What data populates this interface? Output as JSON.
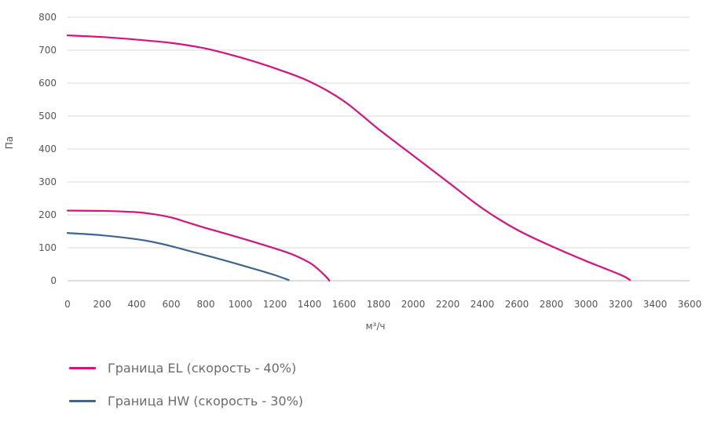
{
  "chart_data": {
    "type": "line",
    "title": "",
    "xlabel": "м³/ч",
    "ylabel": "Па",
    "xlim": [
      0,
      3600
    ],
    "ylim": [
      0,
      800
    ],
    "x_ticks": [
      "0",
      "200",
      "400",
      "600",
      "800",
      "1000",
      "1200",
      "1400",
      "1600",
      "1800",
      "2000",
      "2200",
      "2400",
      "2600",
      "2800",
      "3000",
      "3200",
      "3400",
      "3600"
    ],
    "y_ticks": [
      "0",
      "100",
      "200",
      "300",
      "400",
      "500",
      "600",
      "700",
      "800"
    ],
    "grid": "horizontal",
    "legend_position": "bottom-left",
    "series": [
      {
        "name": "Граница EL (скорость - 40%)",
        "color": "#d6127c",
        "x": [
          0,
          200,
          400,
          600,
          800,
          1000,
          1200,
          1400,
          1600,
          1800,
          2000,
          2200,
          2400,
          2600,
          2800,
          3000,
          3200,
          3255
        ],
        "y": [
          745,
          740,
          732,
          722,
          705,
          678,
          645,
          605,
          545,
          460,
          380,
          300,
          220,
          155,
          105,
          60,
          18,
          2
        ]
      },
      {
        "name": "",
        "color": "#d6127c",
        "x": [
          0,
          200,
          400,
          500,
          600,
          700,
          800,
          1000,
          1200,
          1300,
          1400,
          1450,
          1500,
          1515
        ],
        "y": [
          213,
          212,
          208,
          202,
          192,
          176,
          160,
          130,
          98,
          80,
          55,
          35,
          10,
          0
        ]
      },
      {
        "name": "Граница HW (скорость - 30%)",
        "color": "#3d6590",
        "x": [
          0,
          200,
          400,
          500,
          600,
          700,
          800,
          900,
          1000,
          1100,
          1200,
          1280
        ],
        "y": [
          145,
          138,
          126,
          117,
          105,
          91,
          77,
          63,
          48,
          33,
          17,
          2
        ]
      }
    ]
  },
  "legend": [
    {
      "label": "Граница EL (скорость - 40%)",
      "color": "#d6127c"
    },
    {
      "label": "Граница HW (скорость - 30%)",
      "color": "#3d6590"
    }
  ]
}
